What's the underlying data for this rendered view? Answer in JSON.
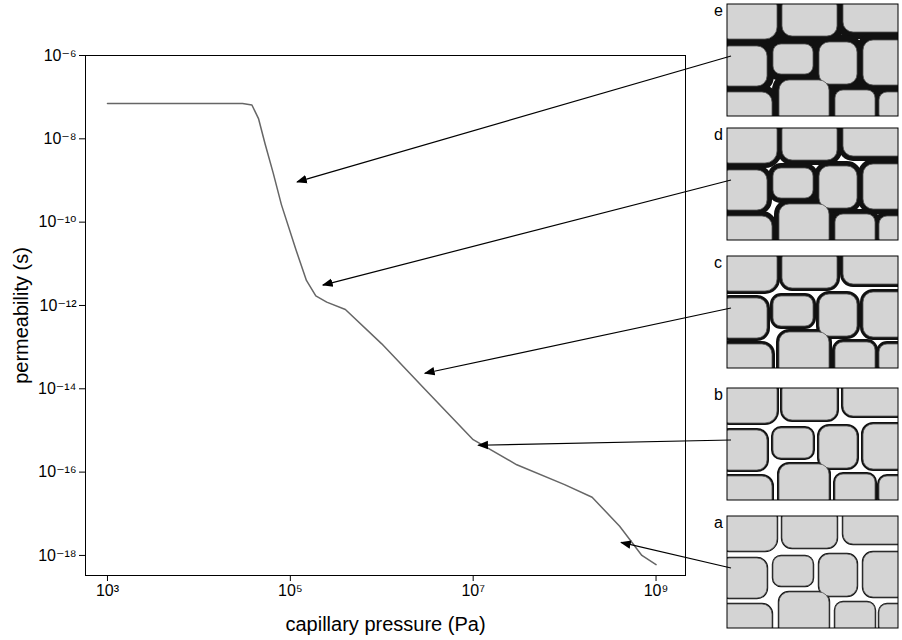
{
  "chart_data": {
    "type": "line",
    "x_label": "capillary pressure (Pa)",
    "y_label": "permeability (s)",
    "log": true,
    "grid": false,
    "color": "#666666",
    "xlim": [
      575,
      2100000000
    ],
    "ylim": [
      3.3e-19,
      1e-06
    ],
    "xticks": [
      {
        "value": 1000,
        "label": "10³"
      },
      {
        "value": 100000,
        "label": "10⁵"
      },
      {
        "value": 10000000,
        "label": "10⁷"
      },
      {
        "value": 1000000000,
        "label": "10⁹"
      }
    ],
    "yticks": [
      {
        "value": 1e-06,
        "label": "10⁻⁶"
      },
      {
        "value": 1e-08,
        "label": "10⁻⁸"
      },
      {
        "value": 1e-10,
        "label": "10⁻¹⁰"
      },
      {
        "value": 1e-12,
        "label": "10⁻¹²"
      },
      {
        "value": 1e-14,
        "label": "10⁻¹⁴"
      },
      {
        "value": 1e-16,
        "label": "10⁻¹⁶"
      },
      {
        "value": 1e-18,
        "label": "10⁻¹⁸"
      }
    ],
    "x": [
      1000,
      10000,
      30000,
      38000,
      45000,
      53000,
      65000,
      80000,
      115000,
      150000,
      190000,
      250000,
      400000,
      1000000,
      3000000,
      10000000,
      30000000,
      100000000,
      200000000,
      400000000,
      700000000,
      1000000000
    ],
    "values": [
      7e-08,
      7e-08,
      7e-08,
      6.5e-08,
      3e-08,
      7.5e-09,
      1.5e-09,
      2.6e-10,
      2.2e-11,
      4e-12,
      1.7e-12,
      1.2e-12,
      8e-13,
      1.2e-13,
      9.5e-15,
      6e-16,
      1.5e-16,
      5e-17,
      2.5e-17,
      5e-18,
      1e-18,
      6e-19
    ],
    "annotations": [
      {
        "label": "e",
        "x": 120000,
        "y": 9e-10
      },
      {
        "label": "d",
        "x": 230000,
        "y": 3e-12
      },
      {
        "label": "c",
        "x": 3000000,
        "y": 2.3e-14
      },
      {
        "label": "b",
        "x": 11500000,
        "y": 4.3e-16
      },
      {
        "label": "a",
        "x": 420000000,
        "y": 2e-18
      }
    ]
  }
}
